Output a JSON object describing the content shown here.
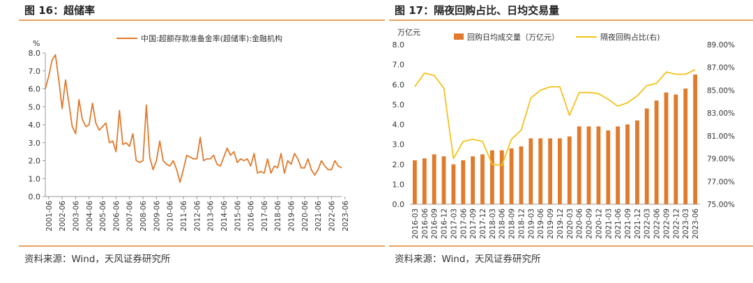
{
  "left": {
    "title": "图 16：超储率",
    "source": "资料来源：Wind，天风证券研究所",
    "colors": {
      "line": "#e07a2c",
      "axis": "#999999",
      "text": "#333333"
    }
  },
  "right": {
    "title": "图 17：隔夜回购占比、日均交易量",
    "source": "资料来源：Wind，天风证券研究所",
    "colors": {
      "bar": "#e07a2c",
      "line": "#f2c21b",
      "axis": "#999999",
      "text": "#333333"
    }
  },
  "chart_data": [
    {
      "type": "line",
      "title": "",
      "ylabel": "%",
      "ylim": [
        0,
        8
      ],
      "yticks": [
        "0.0",
        "1.0",
        "2.0",
        "3.0",
        "4.0",
        "5.0",
        "6.0",
        "7.0",
        "8.0"
      ],
      "x_start": "2001-03",
      "x_step_months": 3,
      "x_tick_labels": [
        "2001-06",
        "2002-06",
        "2003-06",
        "2004-06",
        "2005-06",
        "2006-06",
        "2007-06",
        "2008-06",
        "2009-06",
        "2010-06",
        "2011-06",
        "2012-06",
        "2013-06",
        "2014-06",
        "2015-06",
        "2016-06",
        "2017-06",
        "2018-06",
        "2019-06",
        "2020-06",
        "2021-06",
        "2022-06",
        "2023-06"
      ],
      "grid": false,
      "legend_position": "top",
      "series": [
        {
          "name": "中国:超额存款准备金率(超储率):金融机构",
          "values": [
            6.0,
            6.7,
            7.6,
            7.9,
            6.5,
            4.9,
            6.5,
            5.2,
            3.9,
            3.5,
            5.4,
            4.3,
            3.9,
            4.0,
            5.2,
            4.1,
            3.7,
            3.9,
            4.1,
            3.0,
            3.1,
            2.5,
            4.8,
            2.9,
            3.0,
            2.8,
            3.5,
            2.0,
            1.9,
            2.0,
            5.1,
            2.2,
            1.5,
            2.0,
            3.1,
            2.0,
            1.8,
            1.7,
            2.0,
            1.5,
            0.8,
            1.5,
            2.3,
            2.2,
            2.1,
            2.1,
            3.3,
            2.0,
            2.1,
            2.1,
            2.3,
            1.8,
            1.7,
            2.2,
            2.7,
            2.3,
            2.5,
            1.9,
            2.1,
            2.0,
            2.1,
            1.7,
            2.4,
            1.3,
            1.4,
            1.3,
            2.1,
            1.3,
            1.7,
            1.6,
            2.4,
            1.3,
            2.0,
            1.8,
            2.4,
            2.1,
            1.6,
            1.6,
            2.1,
            1.5,
            1.2,
            1.5,
            2.0,
            1.7,
            1.5,
            1.5,
            2.0,
            1.7,
            1.6
          ]
        }
      ]
    },
    {
      "type": "bar+line",
      "title": "",
      "y_left_label": "万亿元",
      "ylim_left": [
        0,
        8
      ],
      "yticks_left": [
        "0.0",
        "1.0",
        "2.0",
        "3.0",
        "4.0",
        "5.0",
        "6.0",
        "7.0",
        "8.0"
      ],
      "ylim_right": [
        75,
        89
      ],
      "yticks_right": [
        "75.00%",
        "77.00%",
        "79.00%",
        "81.00%",
        "83.00%",
        "85.00%",
        "87.00%",
        "89.00%"
      ],
      "categories": [
        "2016-03",
        "2016-06",
        "2016-09",
        "2016-12",
        "2017-03",
        "2017-06",
        "2017-09",
        "2017-12",
        "2018-03",
        "2018-06",
        "2018-09",
        "2018-12",
        "2019-03",
        "2019-06",
        "2019-09",
        "2019-12",
        "2020-03",
        "2020-06",
        "2020-09",
        "2020-12",
        "2021-03",
        "2021-06",
        "2021-09",
        "2021-12",
        "2022-03",
        "2022-06",
        "2022-09",
        "2022-12",
        "2023-03",
        "2023-06"
      ],
      "grid": false,
      "legend_position": "top",
      "series": [
        {
          "name": "回购日均成交量（万亿元）",
          "kind": "bar",
          "axis": "left",
          "values": [
            2.2,
            2.3,
            2.5,
            2.4,
            2.0,
            2.2,
            2.4,
            2.5,
            2.7,
            2.7,
            2.8,
            2.9,
            3.3,
            3.3,
            3.3,
            3.3,
            3.4,
            3.9,
            3.9,
            3.9,
            3.7,
            3.9,
            4.0,
            4.2,
            4.8,
            5.2,
            5.6,
            5.5,
            5.8,
            6.5
          ]
        },
        {
          "name": "隔夜回购占比(右)",
          "kind": "line",
          "axis": "right",
          "values": [
            85.3,
            86.5,
            86.3,
            85.2,
            79.0,
            80.5,
            80.7,
            80.5,
            78.5,
            78.4,
            80.7,
            81.5,
            84.3,
            85.0,
            85.3,
            85.3,
            82.8,
            84.8,
            84.8,
            84.7,
            84.2,
            83.6,
            83.9,
            84.5,
            85.4,
            85.6,
            86.6,
            86.4,
            86.4,
            86.8
          ]
        }
      ]
    }
  ]
}
